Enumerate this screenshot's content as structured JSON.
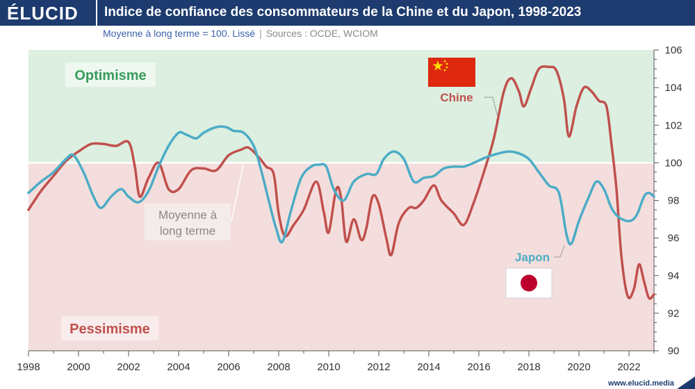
{
  "brand": {
    "logo": "ÉLUCID",
    "website": "www.elucid.media"
  },
  "title": "Indice de confiance des consommateurs de la Chine et du Japon, 1998-2023",
  "subtitle": {
    "main": "Moyenne à long terme = 100. Lissé",
    "separator": "|",
    "sources": "Sources : OCDE, WCIOM"
  },
  "colors": {
    "header": "#1d3b6e",
    "optimism_zone": "#dcefe0",
    "pessimism_zone": "#f4dedd",
    "chine": "#c0504d",
    "japon": "#4bacc6",
    "optimism_text": "#3a9a5b",
    "pessimism_text": "#c0504d"
  },
  "zones": {
    "optimism_label": "Optimisme",
    "pessimism_label": "Pessimisme"
  },
  "annotations": {
    "moyenne_line1": "Moyenne à",
    "moyenne_line2": "long terme",
    "flag_cn": "china-flag-icon",
    "flag_jp": "japan-flag-icon"
  },
  "chart_data": {
    "type": "line",
    "xlim": [
      1998,
      2023
    ],
    "ylim": [
      90,
      106
    ],
    "reference_line": 100,
    "x_ticks": [
      "1998",
      "2000",
      "2002",
      "2004",
      "2006",
      "2008",
      "2010",
      "2012",
      "2014",
      "2016",
      "2018",
      "2020",
      "2022"
    ],
    "y_ticks": [
      "90",
      "92",
      "94",
      "96",
      "98",
      "100",
      "102",
      "104",
      "106"
    ],
    "grid": false,
    "series": [
      {
        "name": "Chine",
        "points": [
          [
            1998.0,
            97.5
          ],
          [
            1998.5,
            98.5
          ],
          [
            1999.0,
            99.3
          ],
          [
            1999.5,
            100.1
          ],
          [
            2000.0,
            100.6
          ],
          [
            2000.5,
            101.0
          ],
          [
            2001.0,
            101.0
          ],
          [
            2001.5,
            100.9
          ],
          [
            2002.0,
            101.1
          ],
          [
            2002.25,
            99.8
          ],
          [
            2002.45,
            98.2
          ],
          [
            2002.8,
            99.2
          ],
          [
            2003.2,
            100.0
          ],
          [
            2003.6,
            98.6
          ],
          [
            2004.0,
            98.6
          ],
          [
            2004.5,
            99.6
          ],
          [
            2005.0,
            99.7
          ],
          [
            2005.5,
            99.6
          ],
          [
            2006.0,
            100.4
          ],
          [
            2006.5,
            100.7
          ],
          [
            2006.8,
            100.8
          ],
          [
            2007.2,
            100.3
          ],
          [
            2007.5,
            99.8
          ],
          [
            2007.8,
            99.4
          ],
          [
            2008.0,
            97.3
          ],
          [
            2008.25,
            96.1
          ],
          [
            2008.6,
            96.7
          ],
          [
            2009.0,
            97.5
          ],
          [
            2009.5,
            99.0
          ],
          [
            2009.8,
            97.4
          ],
          [
            2010.0,
            96.3
          ],
          [
            2010.3,
            98.6
          ],
          [
            2010.5,
            98.1
          ],
          [
            2010.7,
            95.8
          ],
          [
            2011.0,
            97.0
          ],
          [
            2011.3,
            95.9
          ],
          [
            2011.5,
            96.5
          ],
          [
            2011.75,
            98.2
          ],
          [
            2012.0,
            97.8
          ],
          [
            2012.3,
            96.0
          ],
          [
            2012.5,
            95.1
          ],
          [
            2012.8,
            96.8
          ],
          [
            2013.2,
            97.6
          ],
          [
            2013.5,
            97.6
          ],
          [
            2013.8,
            98.0
          ],
          [
            2014.2,
            98.8
          ],
          [
            2014.5,
            98.0
          ],
          [
            2015.0,
            97.3
          ],
          [
            2015.4,
            96.7
          ],
          [
            2015.8,
            97.9
          ],
          [
            2016.2,
            99.5
          ],
          [
            2016.6,
            101.3
          ],
          [
            2017.0,
            103.8
          ],
          [
            2017.3,
            104.5
          ],
          [
            2017.6,
            103.8
          ],
          [
            2017.8,
            103.0
          ],
          [
            2018.1,
            104.0
          ],
          [
            2018.4,
            105.0
          ],
          [
            2018.8,
            105.1
          ],
          [
            2019.1,
            104.9
          ],
          [
            2019.4,
            103.4
          ],
          [
            2019.6,
            101.4
          ],
          [
            2019.9,
            103.0
          ],
          [
            2020.2,
            104.0
          ],
          [
            2020.5,
            103.8
          ],
          [
            2020.8,
            103.3
          ],
          [
            2021.1,
            103.0
          ],
          [
            2021.3,
            101.0
          ],
          [
            2021.5,
            98.6
          ],
          [
            2021.7,
            95.0
          ],
          [
            2021.95,
            92.9
          ],
          [
            2022.2,
            93.3
          ],
          [
            2022.4,
            94.6
          ],
          [
            2022.6,
            93.7
          ],
          [
            2022.8,
            92.8
          ],
          [
            2023.0,
            93.0
          ]
        ]
      },
      {
        "name": "Japon",
        "points": [
          [
            1998.0,
            98.4
          ],
          [
            1998.5,
            99.0
          ],
          [
            1999.0,
            99.5
          ],
          [
            1999.5,
            100.2
          ],
          [
            1999.8,
            100.4
          ],
          [
            2000.2,
            99.5
          ],
          [
            2000.6,
            98.2
          ],
          [
            2000.9,
            97.6
          ],
          [
            2001.3,
            98.2
          ],
          [
            2001.7,
            98.6
          ],
          [
            2002.0,
            98.2
          ],
          [
            2002.4,
            97.9
          ],
          [
            2002.8,
            98.5
          ],
          [
            2003.2,
            99.8
          ],
          [
            2003.6,
            100.9
          ],
          [
            2004.0,
            101.6
          ],
          [
            2004.3,
            101.5
          ],
          [
            2004.7,
            101.3
          ],
          [
            2005.0,
            101.6
          ],
          [
            2005.5,
            101.9
          ],
          [
            2005.9,
            101.9
          ],
          [
            2006.2,
            101.7
          ],
          [
            2006.6,
            101.6
          ],
          [
            2007.0,
            100.9
          ],
          [
            2007.3,
            99.6
          ],
          [
            2007.6,
            98.0
          ],
          [
            2007.9,
            96.5
          ],
          [
            2008.15,
            95.8
          ],
          [
            2008.5,
            97.5
          ],
          [
            2008.9,
            99.2
          ],
          [
            2009.3,
            99.8
          ],
          [
            2009.6,
            99.9
          ],
          [
            2009.9,
            99.8
          ],
          [
            2010.2,
            98.6
          ],
          [
            2010.6,
            98.0
          ],
          [
            2011.0,
            99.0
          ],
          [
            2011.5,
            99.4
          ],
          [
            2011.9,
            99.4
          ],
          [
            2012.2,
            100.2
          ],
          [
            2012.6,
            100.6
          ],
          [
            2013.0,
            100.2
          ],
          [
            2013.4,
            99.0
          ],
          [
            2013.8,
            99.2
          ],
          [
            2014.2,
            99.3
          ],
          [
            2014.6,
            99.7
          ],
          [
            2015.0,
            99.8
          ],
          [
            2015.4,
            99.8
          ],
          [
            2015.8,
            100.0
          ],
          [
            2016.3,
            100.3
          ],
          [
            2016.8,
            100.5
          ],
          [
            2017.2,
            100.6
          ],
          [
            2017.6,
            100.5
          ],
          [
            2018.0,
            100.2
          ],
          [
            2018.4,
            99.5
          ],
          [
            2018.8,
            98.8
          ],
          [
            2019.2,
            98.4
          ],
          [
            2019.5,
            96.2
          ],
          [
            2019.7,
            95.7
          ],
          [
            2020.0,
            96.9
          ],
          [
            2020.4,
            98.2
          ],
          [
            2020.7,
            99.0
          ],
          [
            2021.0,
            98.6
          ],
          [
            2021.3,
            97.6
          ],
          [
            2021.6,
            97.1
          ],
          [
            2022.0,
            96.9
          ],
          [
            2022.3,
            97.2
          ],
          [
            2022.6,
            98.2
          ],
          [
            2022.8,
            98.4
          ],
          [
            2023.0,
            98.2
          ]
        ]
      }
    ]
  }
}
